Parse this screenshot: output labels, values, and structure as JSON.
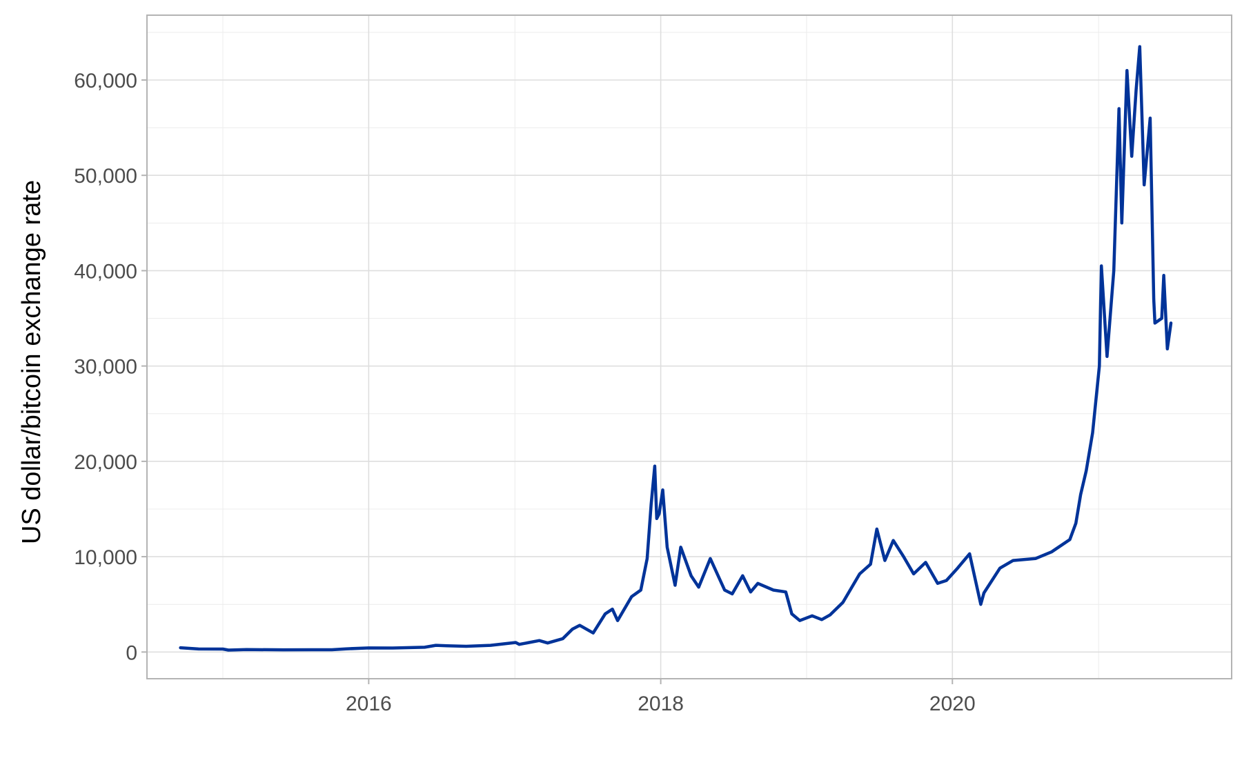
{
  "chart_data": {
    "type": "line",
    "title": "",
    "xlabel": "",
    "ylabel": "US dollar/bitcoin exchange rate",
    "x_ticks": [
      "2016",
      "2018",
      "2020"
    ],
    "y_ticks": [
      "0",
      "10,000",
      "20,000",
      "30,000",
      "40,000",
      "50,000",
      "60,000"
    ],
    "y_tick_values": [
      0,
      10000,
      20000,
      30000,
      40000,
      50000,
      60000
    ],
    "xlim": [
      "2014-06-25",
      "2021-11-30"
    ],
    "ylim": [
      -2800,
      66800
    ],
    "grid": true,
    "legend": "none",
    "line_color": "#003399",
    "series": [
      {
        "x": [
          "2014-09-17",
          "2014-11-01",
          "2015-01-01",
          "2015-01-15",
          "2015-03-01",
          "2015-06-01",
          "2015-08-15",
          "2015-10-01",
          "2015-11-05",
          "2016-01-01",
          "2016-03-01",
          "2016-05-20",
          "2016-06-17",
          "2016-07-15",
          "2016-09-01",
          "2016-11-01",
          "2017-01-03",
          "2017-01-12",
          "2017-03-03",
          "2017-03-24",
          "2017-05-01",
          "2017-05-25",
          "2017-06-12",
          "2017-07-16",
          "2017-08-15",
          "2017-09-02",
          "2017-09-15",
          "2017-10-20",
          "2017-11-12",
          "2017-11-28",
          "2017-12-08",
          "2017-12-17",
          "2017-12-22",
          "2017-12-28",
          "2018-01-06",
          "2018-01-17",
          "2018-02-06",
          "2018-02-20",
          "2018-03-18",
          "2018-04-06",
          "2018-05-05",
          "2018-06-10",
          "2018-06-29",
          "2018-07-25",
          "2018-08-14",
          "2018-09-01",
          "2018-10-10",
          "2018-11-10",
          "2018-11-25",
          "2018-12-15",
          "2019-01-15",
          "2019-02-08",
          "2019-03-01",
          "2019-04-02",
          "2019-05-14",
          "2019-06-10",
          "2019-06-26",
          "2019-07-16",
          "2019-08-06",
          "2019-09-01",
          "2019-09-26",
          "2019-10-26",
          "2019-11-25",
          "2019-12-17",
          "2020-01-14",
          "2020-02-13",
          "2020-03-12",
          "2020-03-20",
          "2020-04-29",
          "2020-06-01",
          "2020-07-27",
          "2020-09-05",
          "2020-10-21",
          "2020-11-05",
          "2020-11-17",
          "2020-12-01",
          "2020-12-17",
          "2021-01-03",
          "2021-01-08",
          "2021-01-22",
          "2021-02-08",
          "2021-02-21",
          "2021-02-28",
          "2021-03-13",
          "2021-03-25",
          "2021-04-05",
          "2021-04-14",
          "2021-04-25",
          "2021-05-10",
          "2021-05-19",
          "2021-05-22",
          "2021-06-08",
          "2021-06-13",
          "2021-06-22",
          "2021-07-01"
        ],
        "y": [
          450,
          320,
          310,
          200,
          250,
          230,
          240,
          240,
          330,
          430,
          420,
          500,
          700,
          650,
          600,
          700,
          1000,
          800,
          1200,
          950,
          1400,
          2400,
          2800,
          2000,
          4000,
          4500,
          3300,
          5800,
          6500,
          9800,
          15500,
          19500,
          14000,
          14500,
          17000,
          11000,
          7000,
          11000,
          8000,
          6800,
          9800,
          6500,
          6100,
          8000,
          6300,
          7200,
          6500,
          6300,
          4000,
          3300,
          3800,
          3400,
          3900,
          5200,
          8200,
          9200,
          12900,
          9600,
          11700,
          10000,
          8200,
          9400,
          7200,
          7500,
          8800,
          10300,
          5000,
          6200,
          8800,
          9600,
          9800,
          10500,
          11800,
          13500,
          16500,
          19000,
          23000,
          30000,
          40500,
          31000,
          40000,
          57000,
          45000,
          61000,
          52000,
          59000,
          63500,
          49000,
          56000,
          37000,
          34500,
          35000,
          39500,
          31800,
          34500
        ]
      }
    ]
  }
}
